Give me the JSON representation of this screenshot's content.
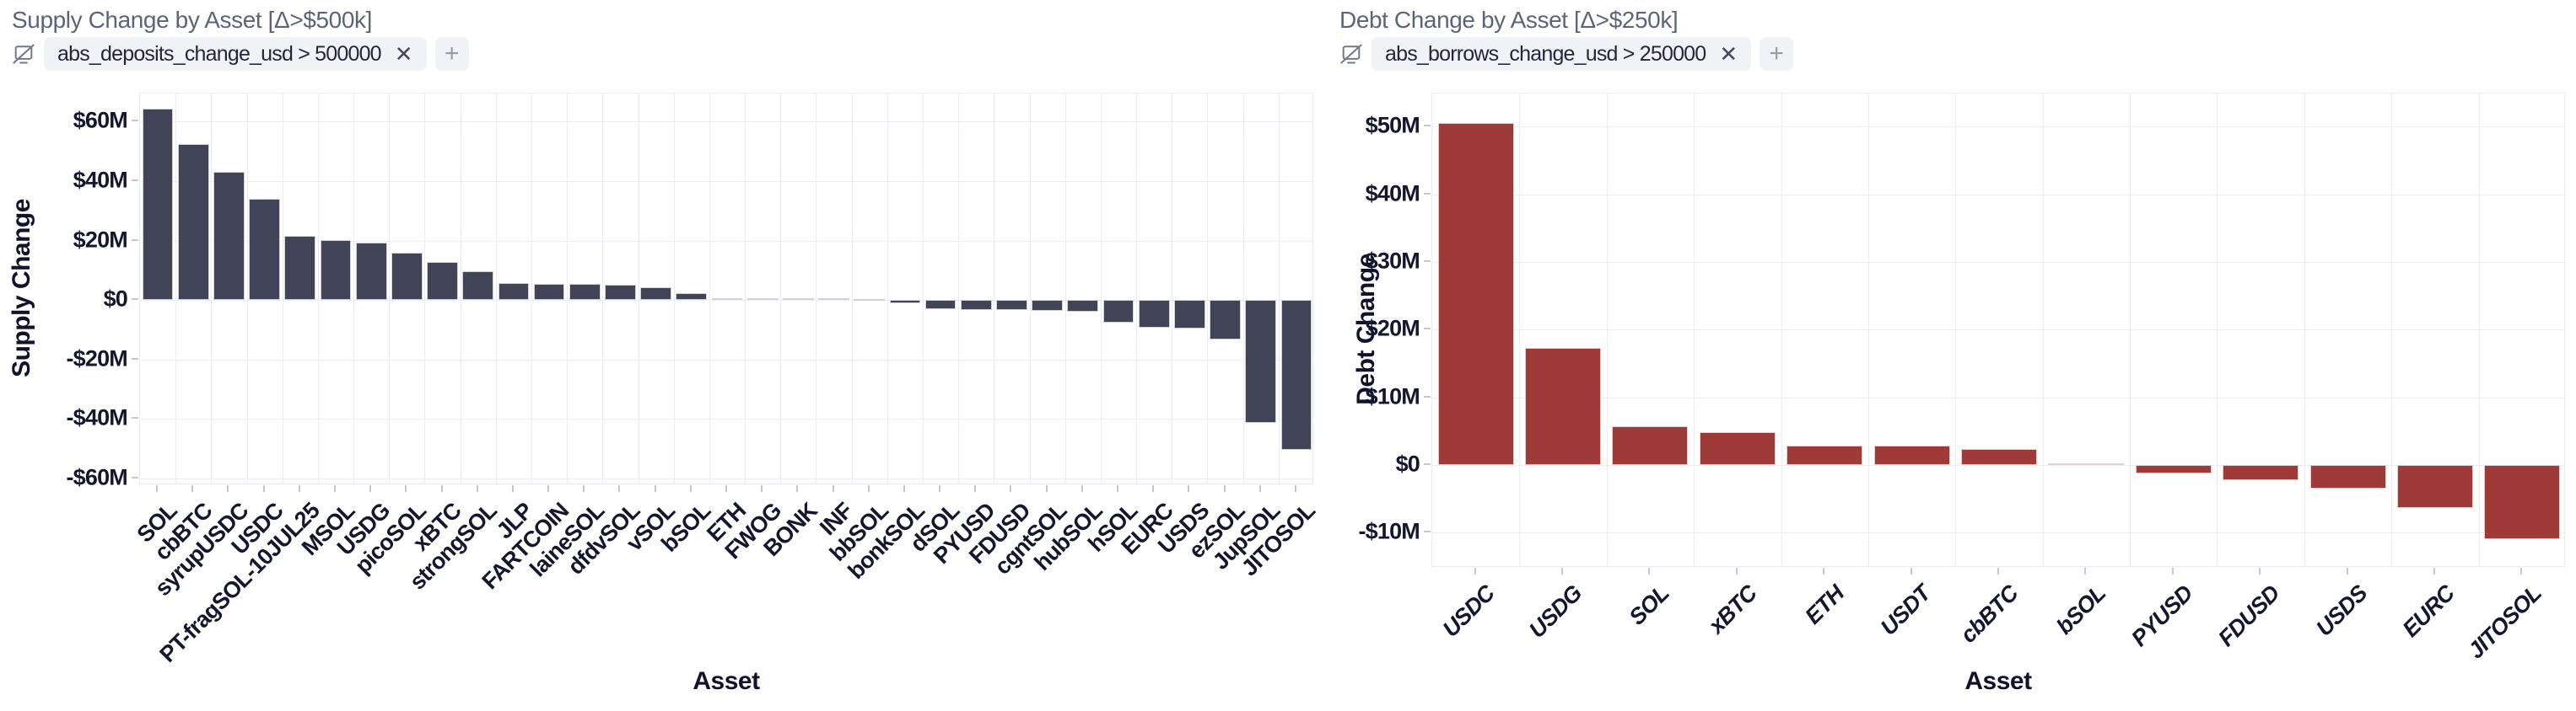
{
  "ui": {
    "chip_close_label": "✕",
    "chip_add_label": "+"
  },
  "colors": {
    "supply_bar": "#414456",
    "debt_bar": "#9e3a37",
    "gridline": "#ecedf4",
    "title_text": "#5b6577",
    "tick_text": "#14172e",
    "chip_bg": "#f1f2f5"
  },
  "chart_data": [
    {
      "type": "bar",
      "title": "Supply Change by Asset [Δ>$500k]",
      "filter_chip": "abs_deposits_change_usd > 500000",
      "xlabel": "Asset",
      "ylabel": "Supply Change",
      "unit": "USD millions",
      "ylim": [
        -62.4,
        69.5
      ],
      "grid": true,
      "bar_color": "#414456",
      "tick_label_style": "normal",
      "yticks": [
        {
          "v": 60,
          "label": "$60M"
        },
        {
          "v": 40,
          "label": "$40M"
        },
        {
          "v": 20,
          "label": "$20M"
        },
        {
          "v": 0,
          "label": "$0"
        },
        {
          "v": -20,
          "label": "-$20M"
        },
        {
          "v": -40,
          "label": "-$40M"
        },
        {
          "v": -60,
          "label": "-$60M"
        }
      ],
      "categories": [
        "SOL",
        "cbBTC",
        "syrupUSDC",
        "USDC",
        "PT-fragSOL-10JUL25",
        "MSOL",
        "USDG",
        "picoSOL",
        "xBTC",
        "strongSOL",
        "JLP",
        "FARTCOIN",
        "laineSOL",
        "dfdvSOL",
        "vSOL",
        "bSOL",
        "ETH",
        "FWOG",
        "BONK",
        "INF",
        "bbSOL",
        "bonkSOL",
        "dSOL",
        "PYUSD",
        "FDUSD",
        "cgntSOL",
        "hubSOL",
        "hSOL",
        "EURC",
        "USDS",
        "ezSOL",
        "JupSOL",
        "JITOSOL"
      ],
      "values": [
        64.5,
        52.5,
        43.2,
        34.0,
        21.6,
        20.1,
        19.2,
        15.9,
        12.9,
        9.7,
        5.6,
        5.5,
        5.4,
        5.0,
        4.3,
        2.2,
        0.7,
        0.6,
        0.5,
        0.5,
        0.4,
        -1.2,
        -3.1,
        -3.3,
        -3.5,
        -3.7,
        -4.0,
        -7.6,
        -9.4,
        -9.7,
        -13.2,
        -41.3,
        -50.6
      ]
    },
    {
      "type": "bar",
      "title": "Debt Change by Asset [Δ>$250k]",
      "filter_chip": "abs_borrows_change_usd > 250000",
      "xlabel": "Asset",
      "ylabel": "Debt Change",
      "unit": "USD millions",
      "ylim": [
        -15.2,
        54.9
      ],
      "grid": true,
      "bar_color": "#9e3a37",
      "tick_label_style": "italic",
      "yticks": [
        {
          "v": 50,
          "label": "$50M"
        },
        {
          "v": 40,
          "label": "$40M"
        },
        {
          "v": 30,
          "label": "$30M"
        },
        {
          "v": 20,
          "label": "$20M"
        },
        {
          "v": 10,
          "label": "$10M"
        },
        {
          "v": 0,
          "label": "$0"
        },
        {
          "v": -10,
          "label": "-$10M"
        }
      ],
      "categories": [
        "USDC",
        "USDG",
        "SOL",
        "xBTC",
        "ETH",
        "USDT",
        "cbBTC",
        "bSOL",
        "PYUSD",
        "FDUSD",
        "USDS",
        "EURC",
        "JITOSOL"
      ],
      "values": [
        50.6,
        17.3,
        5.7,
        4.8,
        2.9,
        2.8,
        2.3,
        0.3,
        -1.3,
        -2.3,
        -3.5,
        -6.3,
        -11.0
      ]
    }
  ]
}
